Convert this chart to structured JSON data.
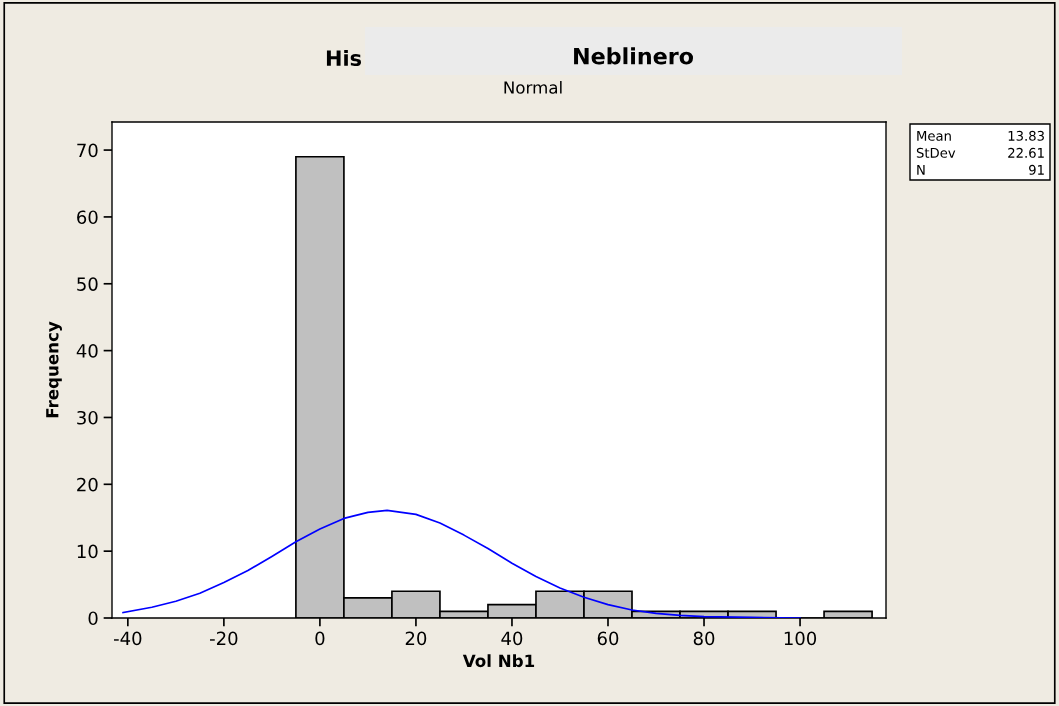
{
  "chart_data": {
    "type": "histogram",
    "title": "Neblinero",
    "subtitle": "Normal",
    "xlabel": "Vol Nb1",
    "ylabel": "Frequency",
    "bins": [
      -5,
      5,
      15,
      25,
      35,
      45,
      55,
      65,
      75,
      85,
      95,
      105,
      115
    ],
    "values": [
      69,
      3,
      4,
      1,
      2,
      4,
      4,
      1,
      1,
      1,
      0,
      1
    ],
    "color": "#c0c0c0",
    "series": [
      {
        "type": "line",
        "color": "#0000ff",
        "x": [
          -41,
          -35,
          -30,
          -25,
          -20,
          -15,
          -10,
          -5,
          0,
          5,
          10,
          14,
          20,
          25,
          30,
          35,
          40,
          45,
          50,
          55,
          60,
          65,
          70,
          75,
          80,
          90,
          100
        ],
        "values": [
          0.8,
          1.6,
          2.5,
          3.7,
          5.3,
          7.1,
          9.2,
          11.4,
          13.3,
          14.9,
          15.8,
          16.1,
          15.5,
          14.2,
          12.4,
          10.4,
          8.2,
          6.2,
          4.5,
          3.1,
          2.0,
          1.2,
          0.7,
          0.4,
          0.2,
          0.1,
          0
        ]
      }
    ],
    "xlim": [
      -43.3,
      117.9
    ],
    "ylim": [
      0,
      74.2
    ],
    "xticks": [
      -40,
      -20,
      0,
      20,
      40,
      60,
      80,
      100
    ],
    "yticks": [
      0,
      10,
      20,
      30,
      40,
      50,
      60,
      70
    ],
    "grid": false,
    "annotations": [
      "His",
      "Mean",
      "13.83",
      "StDev",
      "22.61",
      "N",
      "91"
    ]
  }
}
